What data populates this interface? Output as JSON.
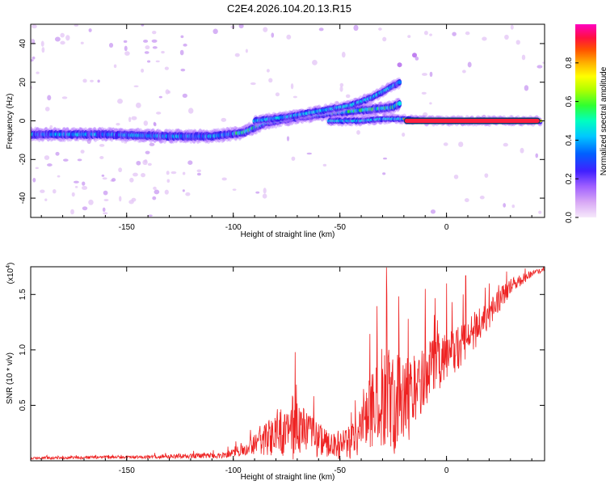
{
  "title": "C2E4.2026.104.20.13.R15",
  "colors": {
    "background": "#ffffff",
    "axis": "#000000",
    "snr_line": "#ee2222",
    "colormap": [
      "#e8c8f5",
      "#b070ff",
      "#4020ff",
      "#0080ff",
      "#00e8e8",
      "#30ff30",
      "#ffff00",
      "#ff8000",
      "#ff2040",
      "#ff00ff"
    ]
  },
  "chart_data": [
    {
      "type": "heatmap",
      "name": "spectrogram",
      "xlabel": "Height of straight line (km)",
      "ylabel": "Frequency (Hz)",
      "xlim": [
        -195,
        46
      ],
      "ylim": [
        -50,
        50
      ],
      "xticks": [
        -150,
        -100,
        -50,
        0
      ],
      "xtick_labels": [
        "-150",
        "-100",
        "-50",
        "0"
      ],
      "yticks": [
        -40,
        -20,
        0,
        20,
        40
      ],
      "ytick_labels": [
        "-40",
        "-20",
        "0",
        "20",
        "40"
      ],
      "ridges": [
        {
          "name": "main-trace",
          "x": [
            -195,
            -160,
            -130,
            -110,
            -95,
            -85,
            -70,
            -55,
            -45,
            -35,
            -25,
            -22
          ],
          "y": [
            -7,
            -7,
            -8,
            -8,
            -6,
            -1,
            2,
            4,
            5,
            6,
            7,
            9
          ]
        },
        {
          "name": "upper-branch",
          "x": [
            -90,
            -75,
            -60,
            -45,
            -35,
            -30,
            -25,
            -22
          ],
          "y": [
            0,
            2,
            5,
            8,
            12,
            15,
            18,
            20
          ]
        },
        {
          "name": "tail-segment",
          "x": [
            -55,
            -40,
            -30,
            -20,
            -10,
            0,
            10,
            20,
            30,
            44
          ],
          "y": [
            0,
            0,
            1,
            1,
            0,
            0,
            0,
            0,
            0,
            0
          ]
        }
      ],
      "isolated_points": [
        {
          "x": -22,
          "y": 29
        },
        {
          "x": -15,
          "y": 34
        }
      ],
      "colorbar": {
        "label": "Normalized spectral amplitude",
        "range": [
          0,
          1
        ],
        "ticks": [
          0.0,
          0.2,
          0.4,
          0.6,
          0.8
        ],
        "tick_labels": [
          "0.0",
          "0.2",
          "0.4",
          "0.6",
          "0.8"
        ]
      }
    },
    {
      "type": "line",
      "name": "snr",
      "xlabel": "Height of straight line (km)",
      "ylabel": "SNR (10 * v/v)",
      "scale_label": "(x10",
      "scale_exponent": "4",
      "xlim": [
        -195,
        46
      ],
      "ylim": [
        0,
        1.75
      ],
      "xticks": [
        -150,
        -100,
        -50,
        0
      ],
      "xtick_labels": [
        "-150",
        "-100",
        "-50",
        "0"
      ],
      "yticks": [
        0.5,
        1.0,
        1.5
      ],
      "ytick_labels": [
        "0.5",
        "1.0",
        "1.5"
      ],
      "envelope": {
        "x": [
          -195,
          -150,
          -105,
          -95,
          -90,
          -80,
          -70,
          -62,
          -55,
          -45,
          -35,
          -30,
          -25,
          -20,
          -15,
          -10,
          -5,
          0,
          10,
          20,
          30,
          40,
          46
        ],
        "base": [
          0.02,
          0.03,
          0.04,
          0.08,
          0.12,
          0.18,
          0.18,
          0.15,
          0.1,
          0.12,
          0.35,
          0.45,
          0.4,
          0.35,
          0.5,
          0.7,
          0.8,
          0.85,
          1.05,
          1.3,
          1.55,
          1.68,
          1.72
        ],
        "amp": [
          0.02,
          0.03,
          0.05,
          0.1,
          0.18,
          0.4,
          0.55,
          0.35,
          0.25,
          0.3,
          0.7,
          0.9,
          1.0,
          0.9,
          0.7,
          0.6,
          0.5,
          0.45,
          0.4,
          0.3,
          0.15,
          0.06,
          0.03
        ]
      },
      "peaks": [
        {
          "x": -71,
          "y": 0.98
        },
        {
          "x": -28,
          "y": 1.49
        },
        {
          "x": -18,
          "y": 1.28
        },
        {
          "x": -10,
          "y": 1.55
        },
        {
          "x": 0,
          "y": 1.6
        },
        {
          "x": 9,
          "y": 1.67
        },
        {
          "x": 20,
          "y": 1.6
        }
      ]
    }
  ]
}
